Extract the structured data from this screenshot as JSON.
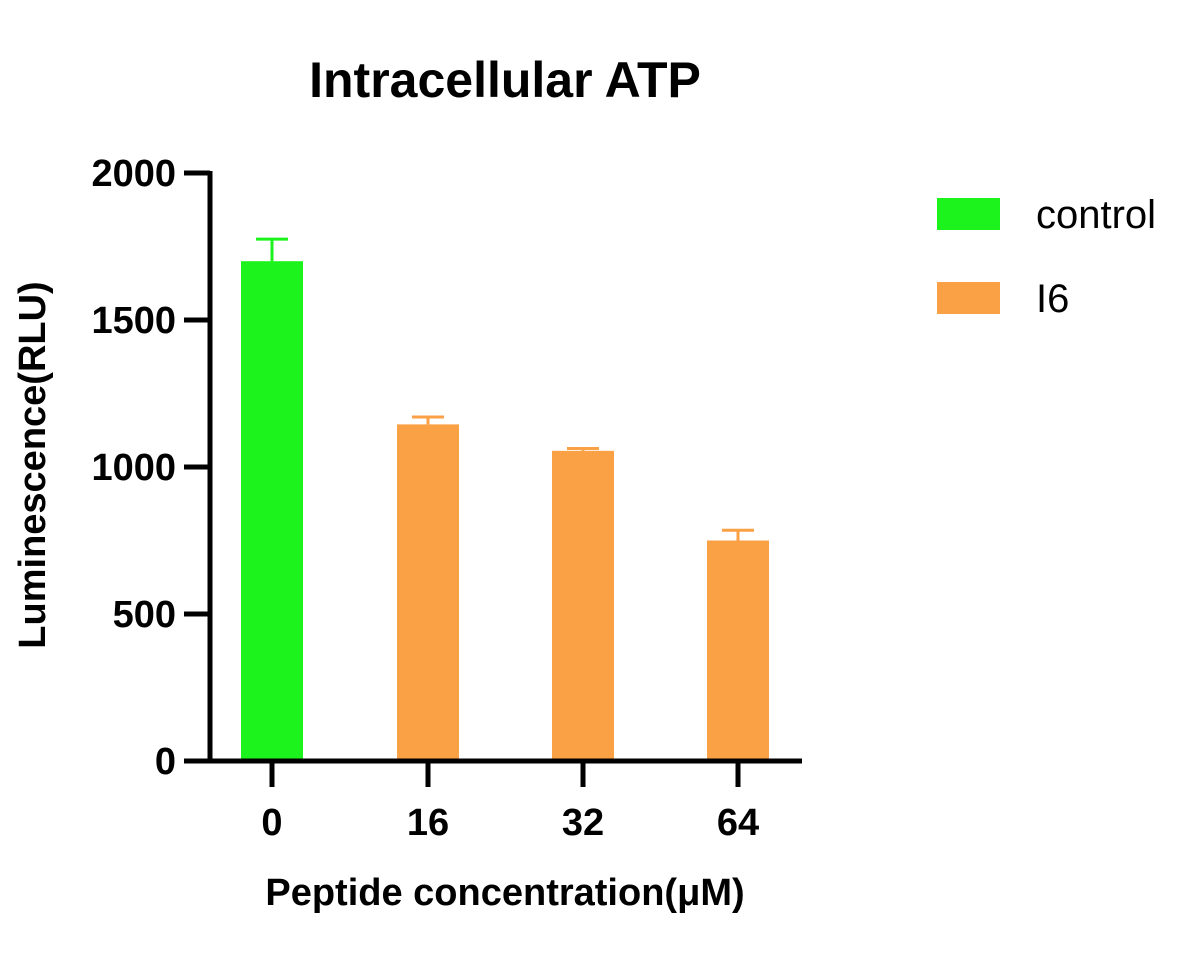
{
  "chart_data": {
    "type": "bar",
    "title": "Intracellular ATP",
    "xlabel": "Peptide concentration(μM)",
    "ylabel": "Luminescence(RLU)",
    "categories": [
      "0",
      "16",
      "32",
      "64"
    ],
    "ylim": [
      0,
      2000
    ],
    "yticks": [
      0,
      500,
      1000,
      1500,
      2000
    ],
    "ytick_labels": [
      "0",
      "500",
      "1000",
      "1500",
      "2000"
    ],
    "bars": [
      {
        "category": "0",
        "series": "control",
        "value": 1700,
        "error": 75
      },
      {
        "category": "16",
        "series": "I6",
        "value": 1145,
        "error": 25
      },
      {
        "category": "32",
        "series": "I6",
        "value": 1055,
        "error": 8
      },
      {
        "category": "64",
        "series": "I6",
        "value": 750,
        "error": 35
      }
    ],
    "series": [
      {
        "name": "control",
        "color": "#1cf31c"
      },
      {
        "name": "I6",
        "color": "#f9a144"
      }
    ],
    "legend_position": "right",
    "grid": false
  }
}
